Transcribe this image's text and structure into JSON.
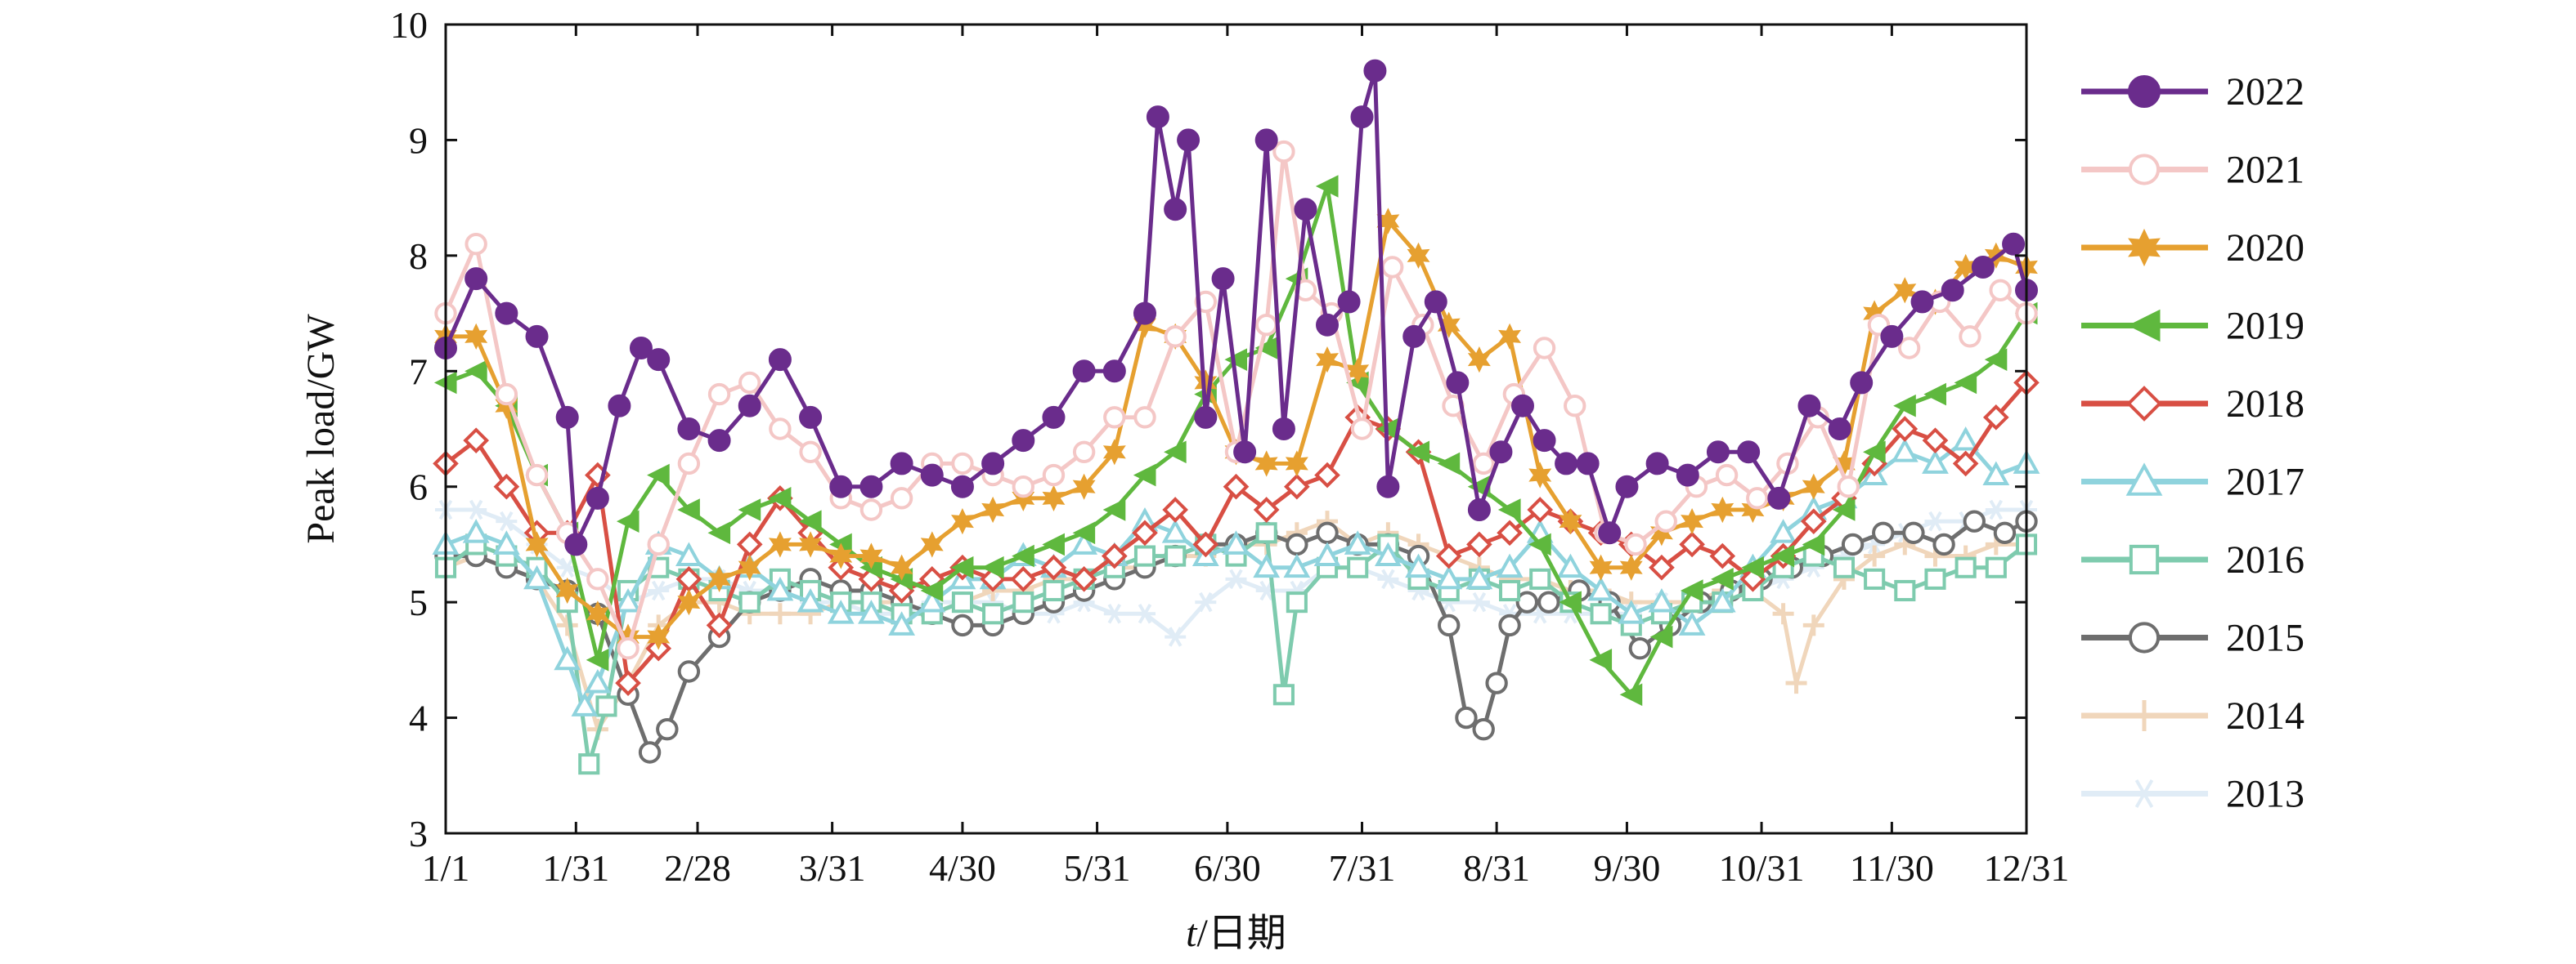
{
  "chart_data": {
    "type": "line",
    "title": "",
    "xlabel_italic": "t",
    "xlabel_rest": "/日期",
    "ylabel": "Peak load/GW",
    "ylim": [
      3,
      10
    ],
    "yticks": [
      "3",
      "4",
      "5",
      "6",
      "7",
      "8",
      "9",
      "10"
    ],
    "xlim": [
      1,
      365
    ],
    "x_tick_days": [
      1,
      31,
      59,
      90,
      120,
      151,
      181,
      212,
      243,
      273,
      304,
      334,
      365
    ],
    "x_tick_labels": [
      "1/1",
      "1/31",
      "2/28",
      "3/31",
      "4/30",
      "5/31",
      "6/30",
      "7/31",
      "8/31",
      "9/30",
      "10/31",
      "11/30",
      "12/31"
    ],
    "grid": false,
    "legend_position": "right",
    "x_unit": "day of year",
    "series": [
      {
        "name": "2022",
        "color": "#6a2c8c",
        "marker": "filled-circle",
        "x": [
          1,
          8,
          15,
          22,
          29,
          31,
          36,
          41,
          46,
          50,
          57,
          64,
          71,
          78,
          85,
          92,
          99,
          106,
          113,
          120,
          127,
          134,
          141,
          148,
          155,
          162,
          165,
          169,
          172,
          176,
          180,
          185,
          190,
          194,
          199,
          204,
          209,
          212,
          215,
          218,
          224,
          229,
          234,
          239,
          244,
          249,
          254,
          259,
          264,
          269,
          273,
          280,
          287,
          294,
          301,
          308,
          315,
          322,
          327,
          334,
          341,
          348,
          355,
          362,
          365
        ],
        "y": [
          7.2,
          7.8,
          7.5,
          7.3,
          6.6,
          5.5,
          5.9,
          6.7,
          7.2,
          7.1,
          6.5,
          6.4,
          6.7,
          7.1,
          6.6,
          6.0,
          6.0,
          6.2,
          6.1,
          6.0,
          6.2,
          6.4,
          6.6,
          7.0,
          7.0,
          7.5,
          9.2,
          8.4,
          9.0,
          6.6,
          7.8,
          6.3,
          9.0,
          6.5,
          8.4,
          7.4,
          7.6,
          9.2,
          9.6,
          6.0,
          7.3,
          7.6,
          6.9,
          5.8,
          6.3,
          6.7,
          6.4,
          6.2,
          6.2,
          5.6,
          6.0,
          6.2,
          6.1,
          6.3,
          6.3,
          5.9,
          6.7,
          6.5,
          6.9,
          7.3,
          7.6,
          7.7,
          7.9,
          8.1,
          7.7
        ]
      },
      {
        "name": "2021",
        "color": "#f4c7c6",
        "marker": "open-circle",
        "x": [
          1,
          8,
          15,
          22,
          29,
          36,
          43,
          50,
          57,
          64,
          71,
          78,
          85,
          92,
          99,
          106,
          113,
          120,
          127,
          134,
          141,
          148,
          155,
          162,
          169,
          176,
          183,
          190,
          194,
          199,
          205,
          212,
          219,
          226,
          233,
          240,
          247,
          254,
          261,
          268,
          275,
          282,
          289,
          296,
          303,
          310,
          317,
          324,
          331,
          338,
          345,
          352,
          359,
          365
        ],
        "y": [
          7.5,
          8.1,
          6.8,
          6.1,
          5.6,
          5.2,
          4.6,
          5.5,
          6.2,
          6.8,
          6.9,
          6.5,
          6.3,
          5.9,
          5.8,
          5.9,
          6.2,
          6.2,
          6.1,
          6.0,
          6.1,
          6.3,
          6.6,
          6.6,
          7.3,
          7.6,
          6.3,
          7.4,
          8.9,
          7.7,
          7.5,
          6.5,
          7.9,
          7.4,
          6.7,
          6.2,
          6.8,
          7.2,
          6.7,
          5.6,
          5.5,
          5.7,
          6.0,
          6.1,
          5.9,
          6.2,
          6.6,
          6.0,
          7.4,
          7.2,
          7.6,
          7.3,
          7.7,
          7.5
        ]
      },
      {
        "name": "2020",
        "color": "#e6a030",
        "marker": "filled-star",
        "x": [
          1,
          8,
          15,
          22,
          29,
          36,
          43,
          50,
          57,
          64,
          71,
          78,
          85,
          92,
          99,
          106,
          113,
          120,
          127,
          134,
          141,
          148,
          155,
          162,
          169,
          176,
          183,
          190,
          197,
          204,
          211,
          218,
          225,
          232,
          239,
          246,
          253,
          260,
          267,
          274,
          281,
          288,
          295,
          302,
          309,
          316,
          323,
          330,
          337,
          344,
          351,
          358,
          365
        ],
        "y": [
          7.3,
          7.3,
          6.7,
          5.5,
          5.1,
          4.9,
          4.7,
          4.7,
          5.0,
          5.2,
          5.3,
          5.5,
          5.5,
          5.4,
          5.4,
          5.3,
          5.5,
          5.7,
          5.8,
          5.9,
          5.9,
          6.0,
          6.3,
          7.4,
          7.3,
          6.9,
          6.3,
          6.2,
          6.2,
          7.1,
          7.0,
          8.3,
          8.0,
          7.4,
          7.1,
          7.3,
          6.1,
          5.7,
          5.3,
          5.3,
          5.6,
          5.7,
          5.8,
          5.8,
          5.9,
          6.0,
          6.2,
          7.5,
          7.7,
          7.6,
          7.9,
          8.0,
          7.9
        ]
      },
      {
        "name": "2019",
        "color": "#5fb83e",
        "marker": "filled-triangle-left",
        "x": [
          1,
          8,
          15,
          22,
          29,
          36,
          43,
          50,
          57,
          64,
          71,
          78,
          85,
          92,
          99,
          106,
          113,
          120,
          127,
          134,
          141,
          148,
          155,
          162,
          169,
          176,
          183,
          190,
          197,
          204,
          211,
          218,
          225,
          232,
          239,
          246,
          253,
          260,
          267,
          274,
          281,
          288,
          295,
          302,
          309,
          316,
          323,
          330,
          337,
          344,
          351,
          358,
          365
        ],
        "y": [
          6.9,
          7.0,
          6.7,
          6.1,
          5.6,
          4.5,
          5.7,
          6.1,
          5.8,
          5.6,
          5.8,
          5.9,
          5.7,
          5.5,
          5.3,
          5.2,
          5.1,
          5.3,
          5.3,
          5.4,
          5.5,
          5.6,
          5.8,
          6.1,
          6.3,
          6.8,
          7.1,
          7.2,
          7.8,
          8.6,
          6.9,
          6.5,
          6.3,
          6.2,
          6.0,
          5.8,
          5.5,
          5.0,
          4.5,
          4.2,
          4.7,
          5.1,
          5.2,
          5.3,
          5.4,
          5.5,
          5.8,
          6.3,
          6.7,
          6.8,
          6.9,
          7.1,
          7.5
        ]
      },
      {
        "name": "2018",
        "color": "#d84f44",
        "marker": "open-diamond",
        "x": [
          1,
          8,
          15,
          22,
          29,
          36,
          43,
          50,
          57,
          64,
          71,
          78,
          85,
          92,
          99,
          106,
          113,
          120,
          127,
          134,
          141,
          148,
          155,
          162,
          169,
          176,
          183,
          190,
          197,
          204,
          211,
          218,
          225,
          232,
          239,
          246,
          253,
          260,
          267,
          274,
          281,
          288,
          295,
          302,
          309,
          316,
          323,
          330,
          337,
          344,
          351,
          358,
          365
        ],
        "y": [
          6.2,
          6.4,
          6.0,
          5.6,
          5.6,
          6.1,
          4.3,
          4.6,
          5.2,
          4.8,
          5.5,
          5.9,
          5.6,
          5.3,
          5.2,
          5.1,
          5.2,
          5.3,
          5.2,
          5.2,
          5.3,
          5.2,
          5.4,
          5.6,
          5.8,
          5.5,
          6.0,
          5.8,
          6.0,
          6.1,
          6.6,
          6.5,
          6.3,
          5.4,
          5.5,
          5.6,
          5.8,
          5.7,
          5.6,
          5.5,
          5.3,
          5.5,
          5.4,
          5.2,
          5.4,
          5.7,
          5.9,
          6.2,
          6.5,
          6.4,
          6.2,
          6.6,
          6.9
        ]
      },
      {
        "name": "2017",
        "color": "#8fd3dd",
        "marker": "open-triangle-up",
        "x": [
          1,
          8,
          15,
          22,
          29,
          33,
          36,
          43,
          50,
          57,
          64,
          71,
          78,
          85,
          92,
          99,
          106,
          113,
          120,
          127,
          134,
          141,
          148,
          155,
          162,
          169,
          176,
          183,
          190,
          197,
          204,
          211,
          218,
          225,
          232,
          239,
          246,
          253,
          260,
          267,
          274,
          281,
          288,
          295,
          302,
          309,
          316,
          323,
          330,
          337,
          344,
          351,
          358,
          365
        ],
        "y": [
          5.5,
          5.6,
          5.5,
          5.2,
          4.5,
          4.1,
          4.3,
          5.0,
          5.5,
          5.4,
          5.2,
          5.3,
          5.1,
          5.0,
          4.9,
          4.9,
          4.8,
          5.0,
          5.2,
          5.2,
          5.4,
          5.3,
          5.5,
          5.4,
          5.7,
          5.6,
          5.4,
          5.5,
          5.3,
          5.3,
          5.4,
          5.5,
          5.4,
          5.3,
          5.2,
          5.2,
          5.3,
          5.6,
          5.3,
          5.1,
          4.9,
          5.0,
          4.8,
          5.0,
          5.3,
          5.6,
          5.8,
          5.9,
          6.1,
          6.3,
          6.2,
          6.4,
          6.1,
          6.2
        ]
      },
      {
        "name": "2016",
        "color": "#7ecbae",
        "marker": "open-square",
        "x": [
          1,
          8,
          15,
          22,
          29,
          34,
          38,
          43,
          50,
          57,
          64,
          71,
          78,
          85,
          92,
          99,
          106,
          113,
          120,
          127,
          134,
          141,
          148,
          155,
          162,
          169,
          176,
          183,
          190,
          194,
          197,
          204,
          211,
          218,
          225,
          232,
          239,
          246,
          253,
          260,
          267,
          274,
          281,
          288,
          295,
          302,
          309,
          316,
          323,
          330,
          337,
          344,
          351,
          358,
          365
        ],
        "y": [
          5.3,
          5.5,
          5.4,
          5.3,
          5.0,
          3.6,
          4.1,
          5.1,
          5.3,
          5.2,
          5.1,
          5.0,
          5.2,
          5.1,
          5.0,
          5.0,
          4.9,
          4.9,
          5.0,
          4.9,
          5.0,
          5.1,
          5.2,
          5.3,
          5.4,
          5.4,
          5.5,
          5.4,
          5.6,
          4.2,
          5.0,
          5.3,
          5.3,
          5.5,
          5.2,
          5.1,
          5.2,
          5.1,
          5.2,
          5.0,
          4.9,
          4.8,
          4.9,
          5.0,
          5.0,
          5.1,
          5.3,
          5.4,
          5.3,
          5.2,
          5.1,
          5.2,
          5.3,
          5.3,
          5.5
        ]
      },
      {
        "name": "2015",
        "color": "#6e6e6e",
        "marker": "open-circle",
        "x": [
          1,
          8,
          15,
          22,
          29,
          36,
          43,
          48,
          52,
          57,
          64,
          71,
          78,
          85,
          92,
          99,
          106,
          113,
          120,
          127,
          134,
          141,
          148,
          155,
          162,
          169,
          176,
          183,
          190,
          197,
          204,
          211,
          218,
          225,
          232,
          236,
          240,
          243,
          246,
          250,
          255,
          262,
          269,
          276,
          283,
          290,
          297,
          304,
          311,
          318,
          325,
          332,
          339,
          346,
          353,
          360,
          365
        ],
        "y": [
          5.4,
          5.4,
          5.3,
          5.2,
          5.1,
          4.9,
          4.2,
          3.7,
          3.9,
          4.4,
          4.7,
          5.0,
          5.1,
          5.2,
          5.1,
          5.1,
          5.0,
          4.9,
          4.8,
          4.8,
          4.9,
          5.0,
          5.1,
          5.2,
          5.3,
          5.4,
          5.5,
          5.5,
          5.6,
          5.5,
          5.6,
          5.5,
          5.5,
          5.4,
          4.8,
          4.0,
          3.9,
          4.3,
          4.8,
          5.0,
          5.0,
          5.1,
          5.0,
          4.6,
          4.8,
          5.0,
          5.1,
          5.2,
          5.3,
          5.4,
          5.5,
          5.6,
          5.6,
          5.5,
          5.7,
          5.6,
          5.7
        ]
      },
      {
        "name": "2014",
        "color": "#f0d6bb",
        "marker": "plus",
        "x": [
          1,
          8,
          15,
          22,
          29,
          36,
          43,
          50,
          57,
          64,
          71,
          78,
          85,
          92,
          99,
          106,
          113,
          120,
          127,
          134,
          141,
          148,
          155,
          162,
          169,
          176,
          183,
          190,
          197,
          204,
          211,
          218,
          225,
          232,
          239,
          246,
          253,
          260,
          267,
          274,
          281,
          288,
          295,
          302,
          309,
          312,
          316,
          323,
          330,
          337,
          344,
          351,
          358,
          365
        ],
        "y": [
          5.3,
          5.4,
          5.3,
          5.2,
          4.8,
          3.9,
          4.3,
          4.8,
          5.0,
          5.0,
          4.9,
          4.9,
          4.9,
          5.0,
          5.0,
          5.0,
          4.9,
          5.0,
          5.1,
          5.1,
          5.2,
          5.2,
          5.3,
          5.3,
          5.4,
          5.4,
          5.5,
          5.5,
          5.6,
          5.7,
          5.5,
          5.6,
          5.5,
          5.4,
          5.3,
          5.2,
          5.2,
          5.1,
          5.1,
          5.0,
          5.0,
          5.0,
          5.1,
          5.1,
          4.9,
          4.3,
          4.8,
          5.2,
          5.4,
          5.5,
          5.4,
          5.4,
          5.5,
          5.5
        ]
      },
      {
        "name": "2013",
        "color": "#e0ecf6",
        "marker": "asterisk",
        "x": [
          1,
          8,
          15,
          22,
          29,
          36,
          43,
          50,
          57,
          64,
          71,
          78,
          85,
          92,
          99,
          106,
          113,
          120,
          127,
          134,
          141,
          148,
          155,
          162,
          169,
          176,
          183,
          190,
          197,
          204,
          211,
          218,
          225,
          232,
          239,
          246,
          253,
          260,
          267,
          274,
          281,
          288,
          295,
          302,
          309,
          316,
          323,
          330,
          337,
          344,
          351,
          358,
          365
        ],
        "y": [
          5.8,
          5.8,
          5.7,
          5.5,
          5.3,
          5.2,
          5.0,
          5.1,
          5.2,
          5.2,
          5.1,
          5.1,
          5.0,
          5.0,
          4.9,
          4.9,
          5.0,
          5.0,
          5.0,
          4.9,
          4.9,
          5.0,
          4.9,
          4.9,
          4.7,
          5.0,
          5.2,
          5.1,
          5.1,
          5.3,
          5.3,
          5.2,
          5.1,
          5.0,
          5.0,
          4.9,
          4.9,
          4.9,
          4.9,
          4.9,
          5.0,
          5.0,
          5.0,
          5.1,
          5.2,
          5.3,
          5.4,
          5.5,
          5.6,
          5.7,
          5.7,
          5.8,
          5.8
        ]
      }
    ]
  }
}
